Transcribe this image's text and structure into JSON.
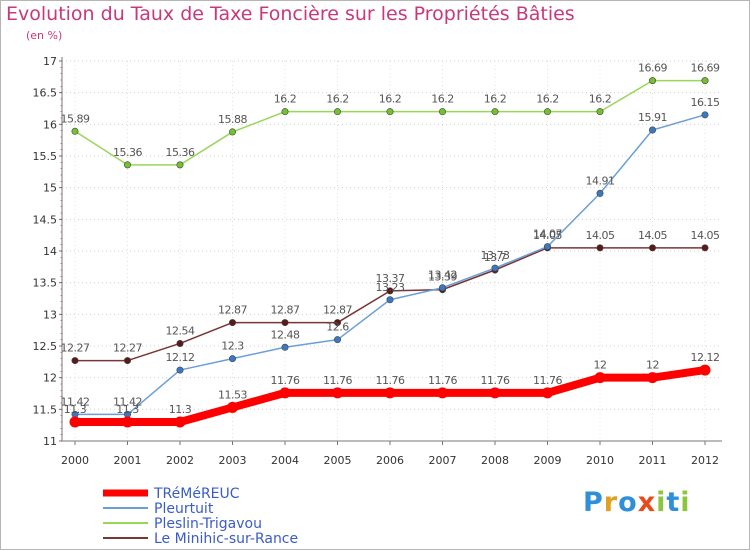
{
  "title": "Evolution du Taux de Taxe Foncière sur les Propriétés Bâties",
  "subtitle": "(en %)",
  "logo": {
    "letters": [
      {
        "ch": "P",
        "color": "#2f8fd8"
      },
      {
        "ch": "r",
        "color": "#e0a020"
      },
      {
        "ch": "o",
        "color": "#2f8fd8"
      },
      {
        "ch": "x",
        "color": "#e84a1a"
      },
      {
        "ch": "i",
        "color": "#8cc63f"
      },
      {
        "ch": "t",
        "color": "#2f8fd8"
      },
      {
        "ch": "i",
        "color": "#8cc63f"
      }
    ]
  },
  "chart_data": {
    "type": "line",
    "title": "Evolution du Taux de Taxe Foncière sur les Propriétés Bâties",
    "ylabel": "(en %)",
    "x": [
      "2000",
      "2001",
      "2002",
      "2003",
      "2004",
      "2005",
      "2006",
      "2007",
      "2008",
      "2009",
      "2010",
      "2011",
      "2012"
    ],
    "ylim": [
      11,
      17
    ],
    "yticks": [
      11,
      11.5,
      12,
      12.5,
      13,
      13.5,
      14,
      14.5,
      15,
      15.5,
      16,
      16.5,
      17
    ],
    "ytick_labels": [
      "11",
      "11.5",
      "12",
      "12.5",
      "13",
      "13.5",
      "14",
      "14.5",
      "15",
      "15.5",
      "16",
      "16.5",
      "17"
    ],
    "legend_position": "bottom-left",
    "series": [
      {
        "name": "TRéMéREUC",
        "color": "#ff0000",
        "marker": "#ff0000",
        "thick": true,
        "values": [
          11.3,
          11.3,
          11.3,
          11.53,
          11.76,
          11.76,
          11.76,
          11.76,
          11.76,
          11.76,
          12,
          12,
          12.12
        ],
        "labels": [
          "11.3",
          "11.3",
          "11.3",
          "11.53",
          "11.76",
          "11.76",
          "11.76",
          "11.76",
          "11.76",
          "11.76",
          "12",
          "12",
          "12.12"
        ]
      },
      {
        "name": "Pleurtuit",
        "color": "#6a9fd8",
        "marker": "#3b78c4",
        "thick": false,
        "values": [
          11.42,
          11.42,
          12.12,
          12.3,
          12.48,
          12.6,
          13.23,
          13.42,
          13.73,
          14.07,
          14.91,
          15.91,
          16.15
        ],
        "labels": [
          "11.42",
          "11.42",
          "12.12",
          "12.3",
          "12.48",
          "12.6",
          "13.23",
          "13.42",
          "13.73",
          "14.07",
          "14.91",
          "15.91",
          "16.15"
        ]
      },
      {
        "name": "Pleslin-Trigavou",
        "color": "#99d65a",
        "marker": "#72c22e",
        "thick": false,
        "values": [
          15.89,
          15.36,
          15.36,
          15.88,
          16.2,
          16.2,
          16.2,
          16.2,
          16.2,
          16.2,
          16.2,
          16.69,
          16.69
        ],
        "labels": [
          "15.89",
          "15.36",
          "15.36",
          "15.88",
          "16.2",
          "16.2",
          "16.2",
          "16.2",
          "16.2",
          "16.2",
          "16.2",
          "16.69",
          "16.69"
        ]
      },
      {
        "name": "Le Minihic-sur-Rance",
        "color": "#7a3535",
        "marker": "#5a1a1a",
        "thick": false,
        "values": [
          12.27,
          12.27,
          12.54,
          12.87,
          12.87,
          12.87,
          13.37,
          13.39,
          13.7,
          14.05,
          14.05,
          14.05,
          14.05
        ],
        "labels": [
          "12.27",
          "12.27",
          "12.54",
          "12.87",
          "12.87",
          "12.87",
          "13.37",
          "13.39",
          "13.7",
          "14.05",
          "14.05",
          "14.05",
          "14.05"
        ]
      }
    ]
  }
}
